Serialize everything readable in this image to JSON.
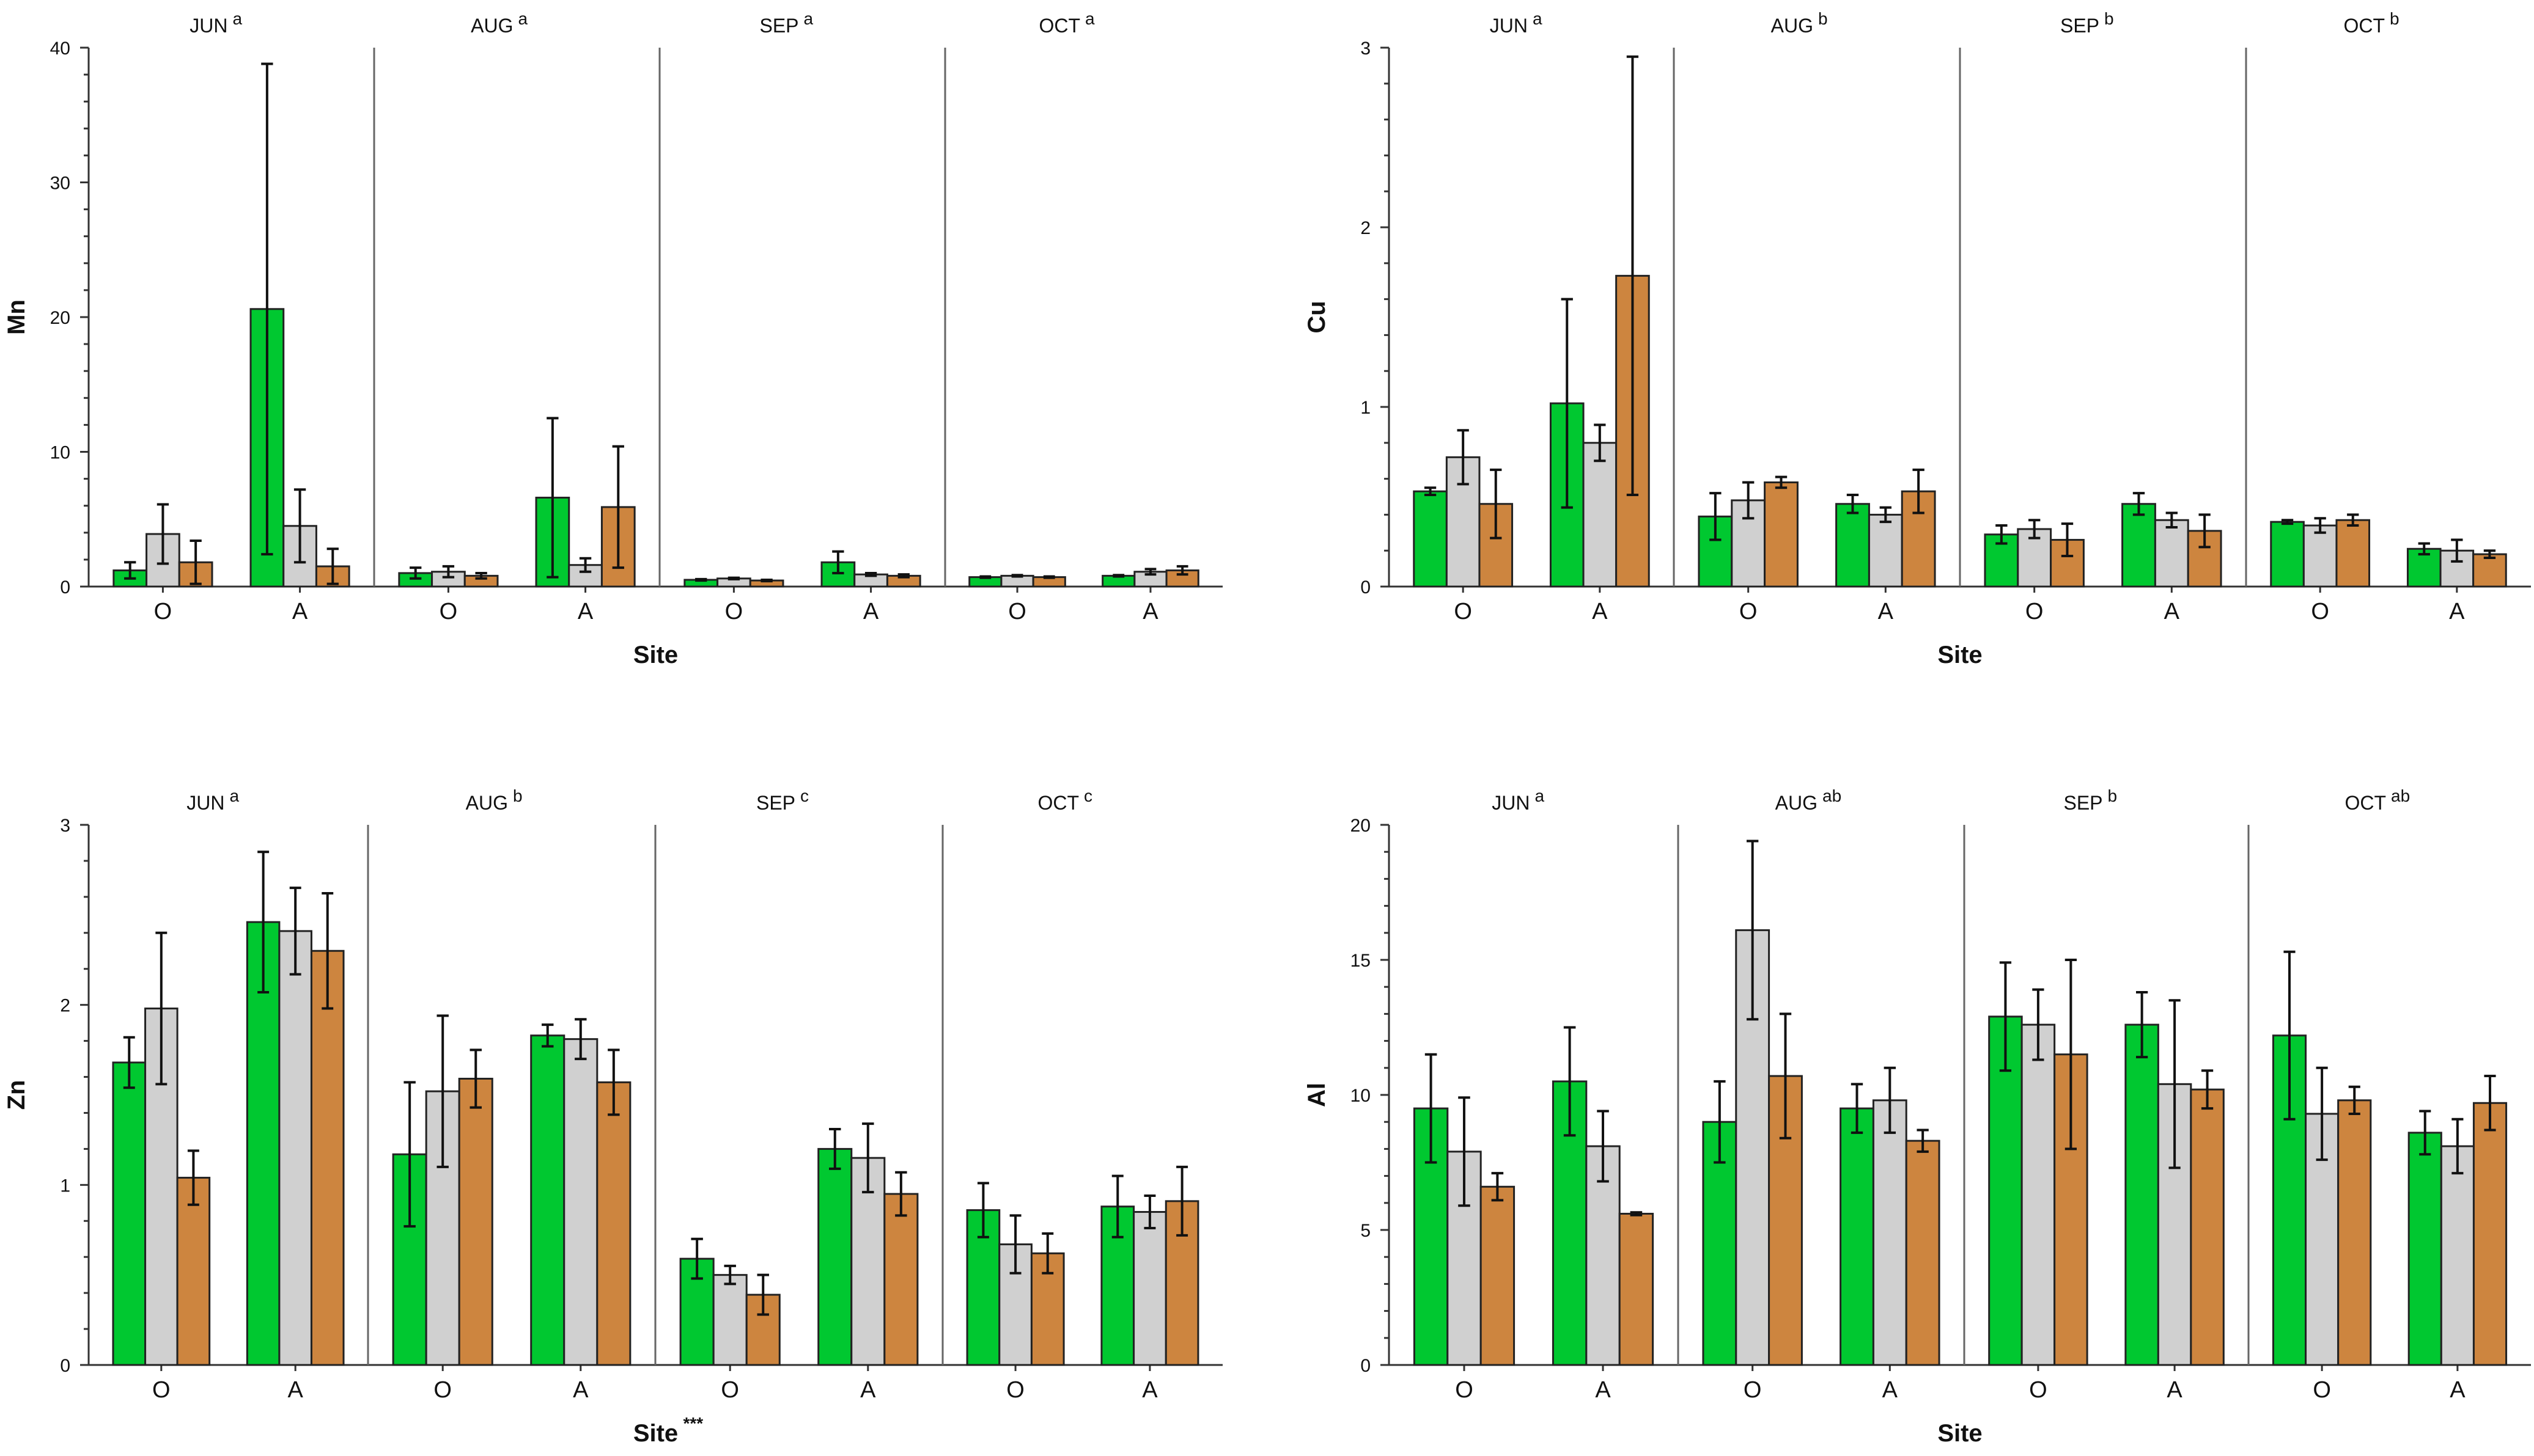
{
  "colors": {
    "green": "#00c830",
    "gray": "#d0d0d0",
    "orange": "#cd853f"
  },
  "chart_data": [
    {
      "type": "bar",
      "ylabel": "Mn",
      "xlabel": "Site",
      "xlabel_sup": "",
      "ylim": [
        0,
        40
      ],
      "yticks": [
        "0",
        "10",
        "20",
        "30",
        "40"
      ],
      "sites": [
        "O",
        "A"
      ],
      "panels": [
        {
          "label": "JUN",
          "sup": "a",
          "O": [
            [
              1.2,
              0.6
            ],
            [
              3.9,
              2.2
            ],
            [
              1.8,
              1.6
            ]
          ],
          "A": [
            [
              20.6,
              18.2
            ],
            [
              4.5,
              2.7
            ],
            [
              1.5,
              1.3
            ]
          ]
        },
        {
          "label": "AUG",
          "sup": "a",
          "O": [
            [
              1.0,
              0.4
            ],
            [
              1.1,
              0.4
            ],
            [
              0.8,
              0.2
            ]
          ],
          "A": [
            [
              6.6,
              5.9
            ],
            [
              1.6,
              0.5
            ],
            [
              5.9,
              4.5
            ]
          ]
        },
        {
          "label": "SEP",
          "sup": "a",
          "O": [
            [
              0.5,
              0.05
            ],
            [
              0.6,
              0.05
            ],
            [
              0.45,
              0.05
            ]
          ],
          "A": [
            [
              1.8,
              0.8
            ],
            [
              0.9,
              0.1
            ],
            [
              0.8,
              0.1
            ]
          ]
        },
        {
          "label": "OCT",
          "sup": "a",
          "O": [
            [
              0.7,
              0.05
            ],
            [
              0.8,
              0.05
            ],
            [
              0.7,
              0.05
            ]
          ],
          "A": [
            [
              0.8,
              0.05
            ],
            [
              1.1,
              0.2
            ],
            [
              1.2,
              0.3
            ]
          ]
        }
      ]
    },
    {
      "type": "bar",
      "ylabel": "Cu",
      "xlabel": "Site",
      "xlabel_sup": "",
      "ylim": [
        0,
        3
      ],
      "yticks": [
        "0",
        "1",
        "2",
        "3"
      ],
      "sites": [
        "O",
        "A"
      ],
      "panels": [
        {
          "label": "JUN",
          "sup": "a",
          "O": [
            [
              0.53,
              0.02
            ],
            [
              0.72,
              0.15
            ],
            [
              0.46,
              0.19
            ]
          ],
          "A": [
            [
              1.02,
              0.58
            ],
            [
              0.8,
              0.1
            ],
            [
              1.73,
              1.22
            ]
          ]
        },
        {
          "label": "AUG",
          "sup": "b",
          "O": [
            [
              0.39,
              0.13
            ],
            [
              0.48,
              0.1
            ],
            [
              0.58,
              0.03
            ]
          ],
          "A": [
            [
              0.46,
              0.05
            ],
            [
              0.4,
              0.04
            ],
            [
              0.53,
              0.12
            ]
          ]
        },
        {
          "label": "SEP",
          "sup": "b",
          "O": [
            [
              0.29,
              0.05
            ],
            [
              0.32,
              0.05
            ],
            [
              0.26,
              0.09
            ]
          ],
          "A": [
            [
              0.46,
              0.06
            ],
            [
              0.37,
              0.04
            ],
            [
              0.31,
              0.09
            ]
          ]
        },
        {
          "label": "OCT",
          "sup": "b",
          "O": [
            [
              0.36,
              0.01
            ],
            [
              0.34,
              0.04
            ],
            [
              0.37,
              0.03
            ]
          ],
          "A": [
            [
              0.21,
              0.03
            ],
            [
              0.2,
              0.06
            ],
            [
              0.18,
              0.02
            ]
          ]
        }
      ]
    },
    {
      "type": "bar",
      "ylabel": "Zn",
      "xlabel": "Site",
      "xlabel_sup": "***",
      "ylim": [
        0,
        3
      ],
      "yticks": [
        "0",
        "1",
        "2",
        "3"
      ],
      "sites": [
        "O",
        "A"
      ],
      "panels": [
        {
          "label": "JUN",
          "sup": "a",
          "O": [
            [
              1.68,
              0.14
            ],
            [
              1.98,
              0.42
            ],
            [
              1.04,
              0.15
            ]
          ],
          "A": [
            [
              2.46,
              0.39
            ],
            [
              2.41,
              0.24
            ],
            [
              2.3,
              0.32
            ]
          ]
        },
        {
          "label": "AUG",
          "sup": "b",
          "O": [
            [
              1.17,
              0.4
            ],
            [
              1.52,
              0.42
            ],
            [
              1.59,
              0.16
            ]
          ],
          "A": [
            [
              1.83,
              0.06
            ],
            [
              1.81,
              0.11
            ],
            [
              1.57,
              0.18
            ]
          ]
        },
        {
          "label": "SEP",
          "sup": "c",
          "O": [
            [
              0.59,
              0.11
            ],
            [
              0.5,
              0.05
            ],
            [
              0.39,
              0.11
            ]
          ],
          "A": [
            [
              1.2,
              0.11
            ],
            [
              1.15,
              0.19
            ],
            [
              0.95,
              0.12
            ]
          ]
        },
        {
          "label": "OCT",
          "sup": "c",
          "O": [
            [
              0.86,
              0.15
            ],
            [
              0.67,
              0.16
            ],
            [
              0.62,
              0.11
            ]
          ],
          "A": [
            [
              0.88,
              0.17
            ],
            [
              0.85,
              0.09
            ],
            [
              0.91,
              0.19
            ]
          ]
        }
      ]
    },
    {
      "type": "bar",
      "ylabel": "Al",
      "xlabel": "Site",
      "xlabel_sup": "",
      "ylim": [
        0,
        20
      ],
      "yticks": [
        "0",
        "5",
        "10",
        "15",
        "20"
      ],
      "sites": [
        "O",
        "A"
      ],
      "panels": [
        {
          "label": "JUN",
          "sup": "a",
          "O": [
            [
              9.5,
              2.0
            ],
            [
              7.9,
              2.0
            ],
            [
              6.6,
              0.5
            ]
          ],
          "A": [
            [
              10.5,
              2.0
            ],
            [
              8.1,
              1.3
            ],
            [
              5.6,
              0.05
            ]
          ]
        },
        {
          "label": "AUG",
          "sup": "ab",
          "O": [
            [
              9.0,
              1.5
            ],
            [
              16.1,
              3.3
            ],
            [
              10.7,
              2.3
            ]
          ],
          "A": [
            [
              9.5,
              0.9
            ],
            [
              9.8,
              1.2
            ],
            [
              8.3,
              0.4
            ]
          ]
        },
        {
          "label": "SEP",
          "sup": "b",
          "O": [
            [
              12.9,
              2.0
            ],
            [
              12.6,
              1.3
            ],
            [
              11.5,
              3.5
            ]
          ],
          "A": [
            [
              12.6,
              1.2
            ],
            [
              10.4,
              3.1
            ],
            [
              10.2,
              0.7
            ]
          ]
        },
        {
          "label": "OCT",
          "sup": "ab",
          "O": [
            [
              12.2,
              3.1
            ],
            [
              9.3,
              1.7
            ],
            [
              9.8,
              0.5
            ]
          ],
          "A": [
            [
              8.6,
              0.8
            ],
            [
              8.1,
              1.0
            ],
            [
              9.7,
              1.0
            ]
          ]
        }
      ]
    }
  ]
}
